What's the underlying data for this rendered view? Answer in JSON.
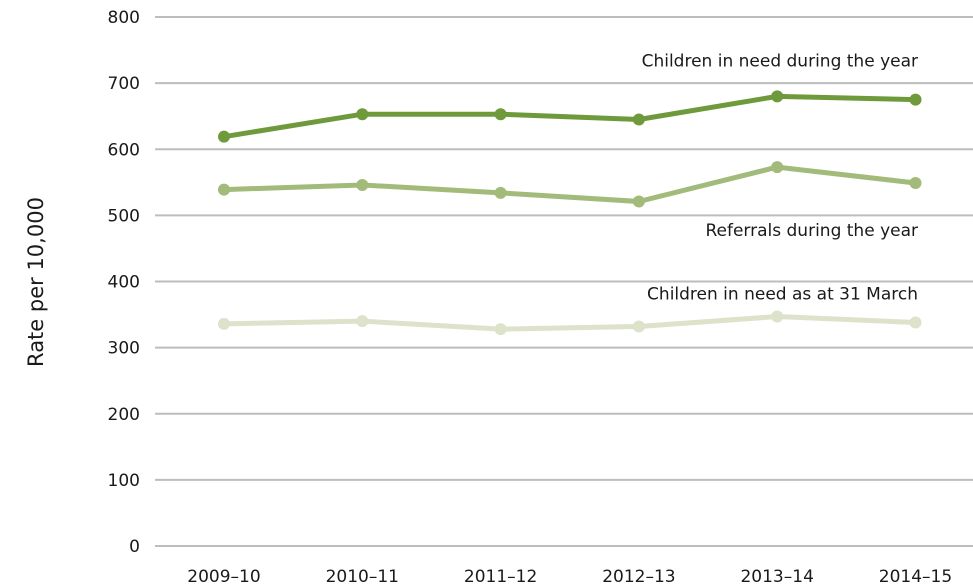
{
  "chart_data": {
    "type": "line",
    "title": "",
    "xlabel": "",
    "ylabel": "Rate per 10,000",
    "categories": [
      "2009–10",
      "2010–11",
      "2011–12",
      "2012–13",
      "2013–14",
      "2014–15"
    ],
    "ylim": [
      0,
      800
    ],
    "yticks": [
      0,
      100,
      200,
      300,
      400,
      500,
      600,
      700,
      800
    ],
    "grid": true,
    "legend": "none",
    "series": [
      {
        "name": "Children in need during the year",
        "values": [
          619,
          653,
          653,
          645,
          680,
          675
        ],
        "color": "#6f9a3b"
      },
      {
        "name": "Referrals during the year",
        "values": [
          539,
          546,
          534,
          521,
          573,
          549
        ],
        "color": "#a3bb7a"
      },
      {
        "name": "Children in need as at 31 March",
        "values": [
          336,
          340,
          328,
          332,
          347,
          338
        ],
        "color": "#dde2cb"
      }
    ]
  }
}
